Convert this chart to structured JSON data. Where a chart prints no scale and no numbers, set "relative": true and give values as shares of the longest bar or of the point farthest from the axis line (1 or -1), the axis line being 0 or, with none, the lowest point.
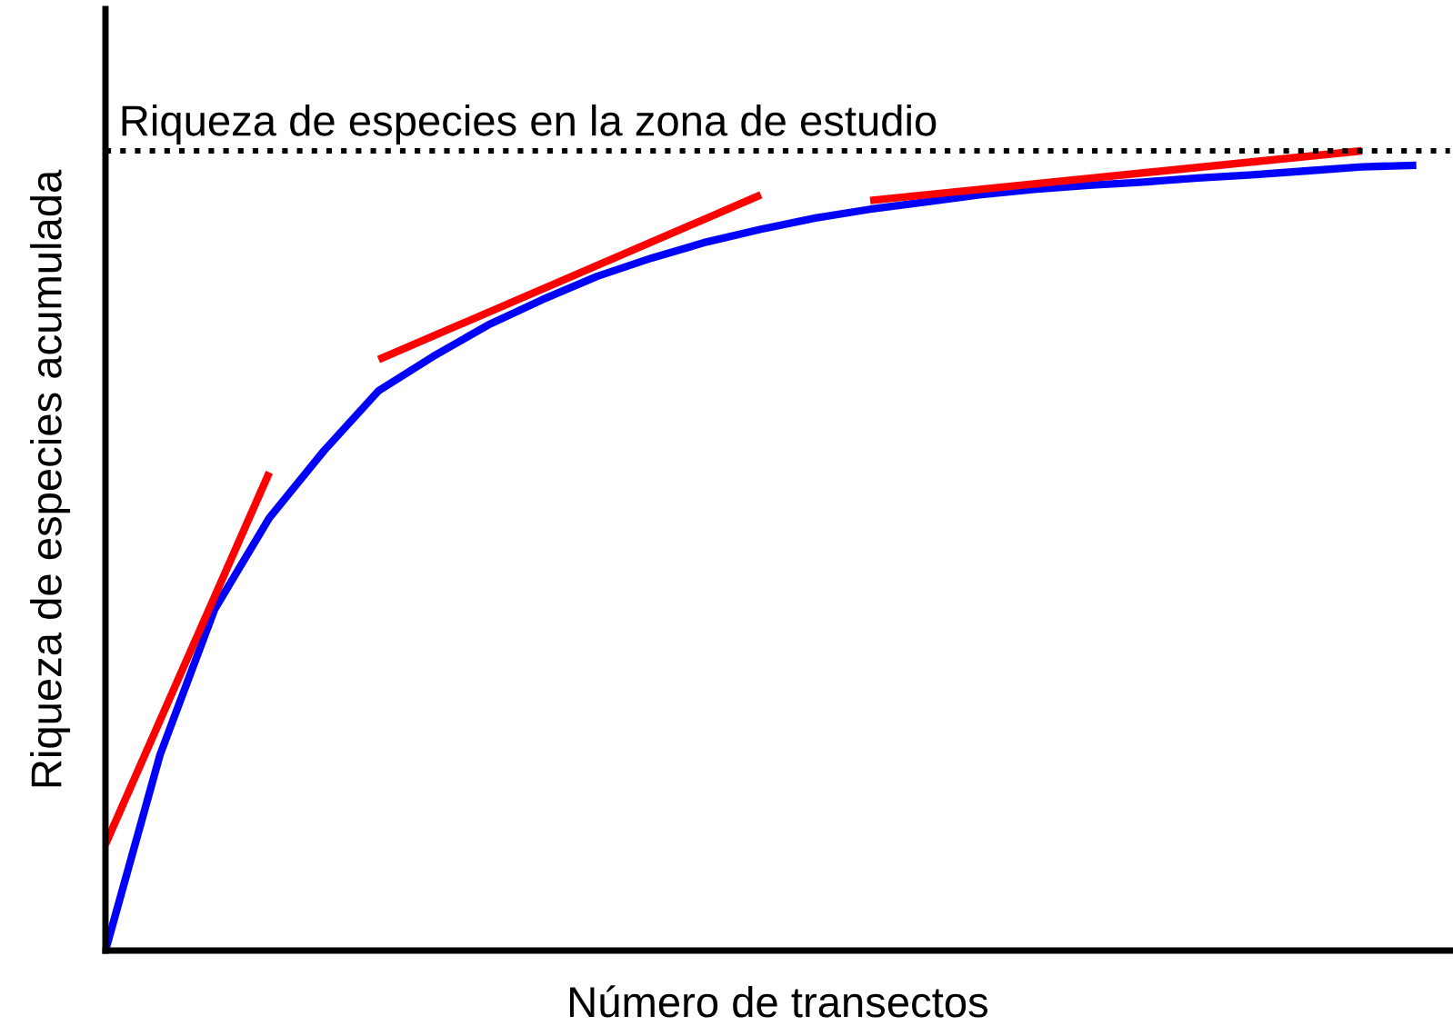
{
  "chart_data": {
    "type": "line",
    "relative": true,
    "xlabel": "Número de transectos",
    "ylabel": "Riqueza de especies acumulada",
    "categories": [
      null,
      null,
      null,
      null,
      null,
      null,
      null,
      null,
      null,
      null,
      null,
      null,
      null,
      null,
      null,
      null,
      null,
      null,
      null,
      null,
      null,
      null,
      null,
      null,
      null
    ],
    "series": [
      {
        "color": "#0000ff",
        "values": [
          0,
          0.245,
          0.427,
          0.541,
          0.625,
          0.7,
          0.743,
          0.782,
          0.814,
          0.843,
          0.866,
          0.886,
          0.902,
          0.916,
          0.927,
          0.936,
          0.945,
          0.952,
          0.957,
          0.961,
          0.966,
          0.97,
          0.975,
          0.98,
          0.982
        ]
      },
      {
        "color": "#ff0000",
        "values": [
          0.133,
          null,
          null,
          0.598,
          null,
          null,
          null,
          null,
          null,
          null,
          null,
          null,
          null,
          null,
          null,
          null,
          null,
          null,
          null,
          null,
          null,
          null,
          null,
          null,
          null
        ]
      },
      {
        "color": "#ff0000",
        "values": [
          null,
          null,
          null,
          null,
          null,
          0.739,
          null,
          null,
          null,
          null,
          null,
          null,
          0.945,
          null,
          null,
          null,
          null,
          null,
          null,
          null,
          null,
          null,
          null,
          null,
          null
        ]
      },
      {
        "color": "#ff0000",
        "values": [
          null,
          null,
          null,
          null,
          null,
          null,
          null,
          null,
          null,
          null,
          null,
          null,
          null,
          null,
          0.938,
          null,
          null,
          null,
          null,
          null,
          null,
          null,
          null,
          1.0,
          null
        ]
      }
    ],
    "ref_lines": [
      {
        "axis": "y",
        "value": 1.0,
        "label": "Riqueza de especies en la zona de estudio",
        "color": "#000000",
        "line_style": "dotted"
      }
    ]
  }
}
